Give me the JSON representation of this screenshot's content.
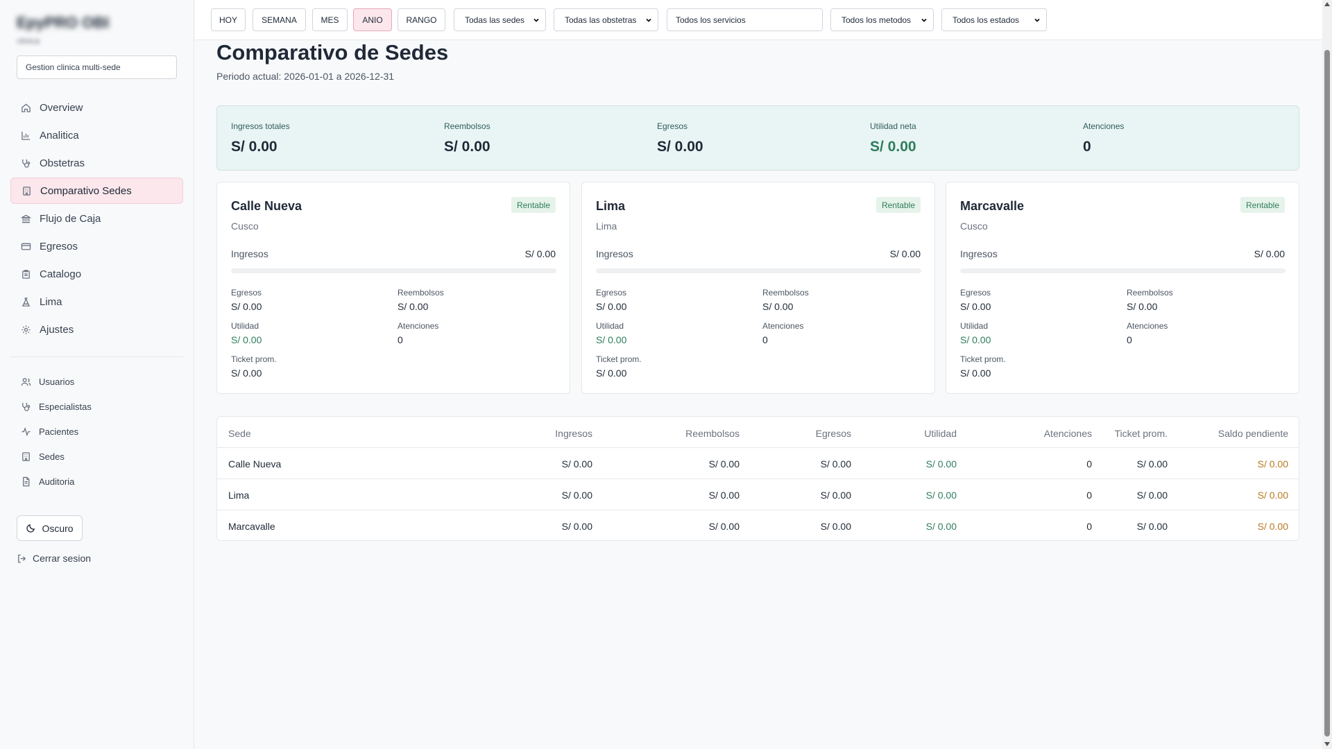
{
  "brand": {
    "name": "EpyPRO OBI",
    "sub": "clinica"
  },
  "sidebar": {
    "search_value": "Gestion clinica multi-sede",
    "primary": [
      {
        "label": "Overview",
        "icon": "home-icon"
      },
      {
        "label": "Analitica",
        "icon": "bar-chart-icon"
      },
      {
        "label": "Obstetras",
        "icon": "stethoscope-icon"
      },
      {
        "label": "Comparativo Sedes",
        "icon": "building-icon",
        "active": true
      },
      {
        "label": "Flujo de Caja",
        "icon": "bank-icon"
      },
      {
        "label": "Egresos",
        "icon": "credit-card-icon"
      },
      {
        "label": "Catalogo",
        "icon": "clipboard-icon"
      },
      {
        "label": "Lima",
        "icon": "flask-icon"
      },
      {
        "label": "Ajustes",
        "icon": "gear-icon"
      }
    ],
    "secondary": [
      {
        "label": "Usuarios",
        "icon": "users-icon"
      },
      {
        "label": "Especialistas",
        "icon": "stethoscope-icon"
      },
      {
        "label": "Pacientes",
        "icon": "activity-icon"
      },
      {
        "label": "Sedes",
        "icon": "building-icon"
      },
      {
        "label": "Auditoria",
        "icon": "document-icon"
      }
    ],
    "theme_button": "Oscuro",
    "logout": "Cerrar sesion"
  },
  "topbar": {
    "periods": [
      "HOY",
      "SEMANA",
      "MES",
      "ANIO",
      "RANGO"
    ],
    "active_period": "ANIO",
    "sede_select": "Todas las sedes",
    "obstetra_select": "Todas las obstetras",
    "servicios_input": "Todos los servicios",
    "metodo_select": "Todos los metodos",
    "estado_select": "Todos los estados"
  },
  "page": {
    "title": "Comparativo de Sedes",
    "period": "Periodo actual: 2026-01-01 a 2026-12-31"
  },
  "summary": [
    {
      "label": "Ingresos totales",
      "value": "S/ 0.00"
    },
    {
      "label": "Reembolsos",
      "value": "S/ 0.00"
    },
    {
      "label": "Egresos",
      "value": "S/ 0.00"
    },
    {
      "label": "Utilidad neta",
      "value": "S/ 0.00"
    },
    {
      "label": "Atenciones",
      "value": "0"
    }
  ],
  "cards": [
    {
      "name": "Calle Nueva",
      "city": "Cusco",
      "badge": "Rentable",
      "ingresos_label": "Ingresos",
      "ingresos": "S/ 0.00",
      "ingresos_share": 0,
      "egresos_label": "Egresos",
      "egresos": "S/ 0.00",
      "reembolsos_label": "Reembolsos",
      "reembolsos": "S/ 0.00",
      "utilidad_label": "Utilidad",
      "utilidad": "S/ 0.00",
      "atenciones_label": "Atenciones",
      "atenciones": "0",
      "ticket_label": "Ticket prom.",
      "ticket": "S/ 0.00"
    },
    {
      "name": "Lima",
      "city": "Lima",
      "badge": "Rentable",
      "ingresos_label": "Ingresos",
      "ingresos": "S/ 0.00",
      "ingresos_share": 0,
      "egresos_label": "Egresos",
      "egresos": "S/ 0.00",
      "reembolsos_label": "Reembolsos",
      "reembolsos": "S/ 0.00",
      "utilidad_label": "Utilidad",
      "utilidad": "S/ 0.00",
      "atenciones_label": "Atenciones",
      "atenciones": "0",
      "ticket_label": "Ticket prom.",
      "ticket": "S/ 0.00"
    },
    {
      "name": "Marcavalle",
      "city": "Cusco",
      "badge": "Rentable",
      "ingresos_label": "Ingresos",
      "ingresos": "S/ 0.00",
      "ingresos_share": 0,
      "egresos_label": "Egresos",
      "egresos": "S/ 0.00",
      "reembolsos_label": "Reembolsos",
      "reembolsos": "S/ 0.00",
      "utilidad_label": "Utilidad",
      "utilidad": "S/ 0.00",
      "atenciones_label": "Atenciones",
      "atenciones": "0",
      "ticket_label": "Ticket prom.",
      "ticket": "S/ 0.00"
    }
  ],
  "table": {
    "headers": [
      "Sede",
      "Ingresos",
      "Reembolsos",
      "Egresos",
      "Utilidad",
      "Atenciones",
      "Ticket prom.",
      "Saldo pendiente"
    ],
    "rows": [
      [
        "Calle Nueva",
        "S/ 0.00",
        "S/ 0.00",
        "S/ 0.00",
        "S/ 0.00",
        "0",
        "S/ 0.00",
        "S/ 0.00"
      ],
      [
        "Lima",
        "S/ 0.00",
        "S/ 0.00",
        "S/ 0.00",
        "S/ 0.00",
        "0",
        "S/ 0.00",
        "S/ 0.00"
      ],
      [
        "Marcavalle",
        "S/ 0.00",
        "S/ 0.00",
        "S/ 0.00",
        "S/ 0.00",
        "0",
        "S/ 0.00",
        "S/ 0.00"
      ]
    ]
  },
  "colors": {
    "accent": "#fbe7ec",
    "positive": "#2e7d5b",
    "pending": "#b7791f",
    "summary_bg": "#e9f4f4"
  }
}
